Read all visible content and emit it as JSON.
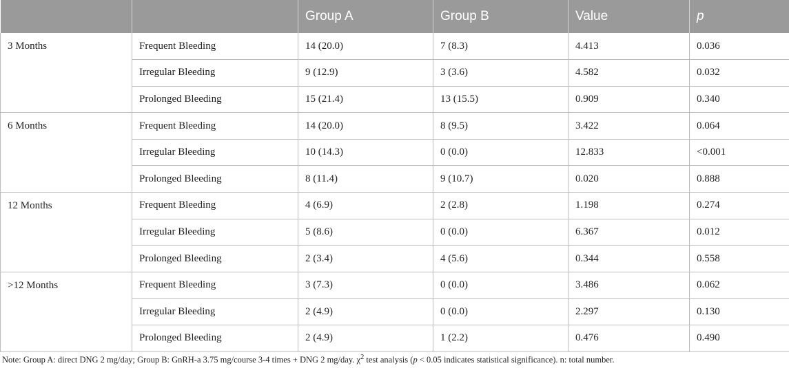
{
  "table": {
    "headers": [
      "",
      "",
      "Group A",
      "Group B",
      "Value",
      "p"
    ],
    "groups": [
      {
        "period": "3 Months",
        "rows": [
          {
            "outcome": "Frequent Bleeding",
            "group_a": "14 (20.0)",
            "group_b": "7 (8.3)",
            "value": "4.413",
            "p": "0.036"
          },
          {
            "outcome": "Irregular Bleeding",
            "group_a": "9 (12.9)",
            "group_b": "3 (3.6)",
            "value": "4.582",
            "p": "0.032"
          },
          {
            "outcome": "Prolonged Bleeding",
            "group_a": "15 (21.4)",
            "group_b": "13 (15.5)",
            "value": "0.909",
            "p": "0.340"
          }
        ]
      },
      {
        "period": "6 Months",
        "rows": [
          {
            "outcome": "Frequent Bleeding",
            "group_a": "14 (20.0)",
            "group_b": "8 (9.5)",
            "value": "3.422",
            "p": "0.064"
          },
          {
            "outcome": "Irregular Bleeding",
            "group_a": "10 (14.3)",
            "group_b": "0 (0.0)",
            "value": "12.833",
            "p": "<0.001"
          },
          {
            "outcome": "Prolonged Bleeding",
            "group_a": "8 (11.4)",
            "group_b": "9 (10.7)",
            "value": "0.020",
            "p": "0.888"
          }
        ]
      },
      {
        "period": "12 Months",
        "rows": [
          {
            "outcome": "Frequent Bleeding",
            "group_a": "4 (6.9)",
            "group_b": "2 (2.8)",
            "value": "1.198",
            "p": "0.274"
          },
          {
            "outcome": "Irregular Bleeding",
            "group_a": "5 (8.6)",
            "group_b": "0 (0.0)",
            "value": "6.367",
            "p": "0.012"
          },
          {
            "outcome": "Prolonged Bleeding",
            "group_a": "2 (3.4)",
            "group_b": "4 (5.6)",
            "value": "0.344",
            "p": "0.558"
          }
        ]
      },
      {
        "period": ">12 Months",
        "rows": [
          {
            "outcome": "Frequent Bleeding",
            "group_a": "3 (7.3)",
            "group_b": "0 (0.0)",
            "value": "3.486",
            "p": "0.062"
          },
          {
            "outcome": "Irregular Bleeding",
            "group_a": "2 (4.9)",
            "group_b": "0 (0.0)",
            "value": "2.297",
            "p": "0.130"
          },
          {
            "outcome": "Prolonged Bleeding",
            "group_a": "2 (4.9)",
            "group_b": "1 (2.2)",
            "value": "0.476",
            "p": "0.490"
          }
        ]
      }
    ]
  },
  "note": {
    "part1": "Note: Group A: direct DNG 2 mg/day; Group B: GnRH-a 3.75 mg/course 3-4 times + DNG 2 mg/day. χ",
    "sup": "2",
    "part2": " test analysis (",
    "p_italic": "p",
    "part3": " < 0.05 indicates statistical significance). n: total number."
  }
}
